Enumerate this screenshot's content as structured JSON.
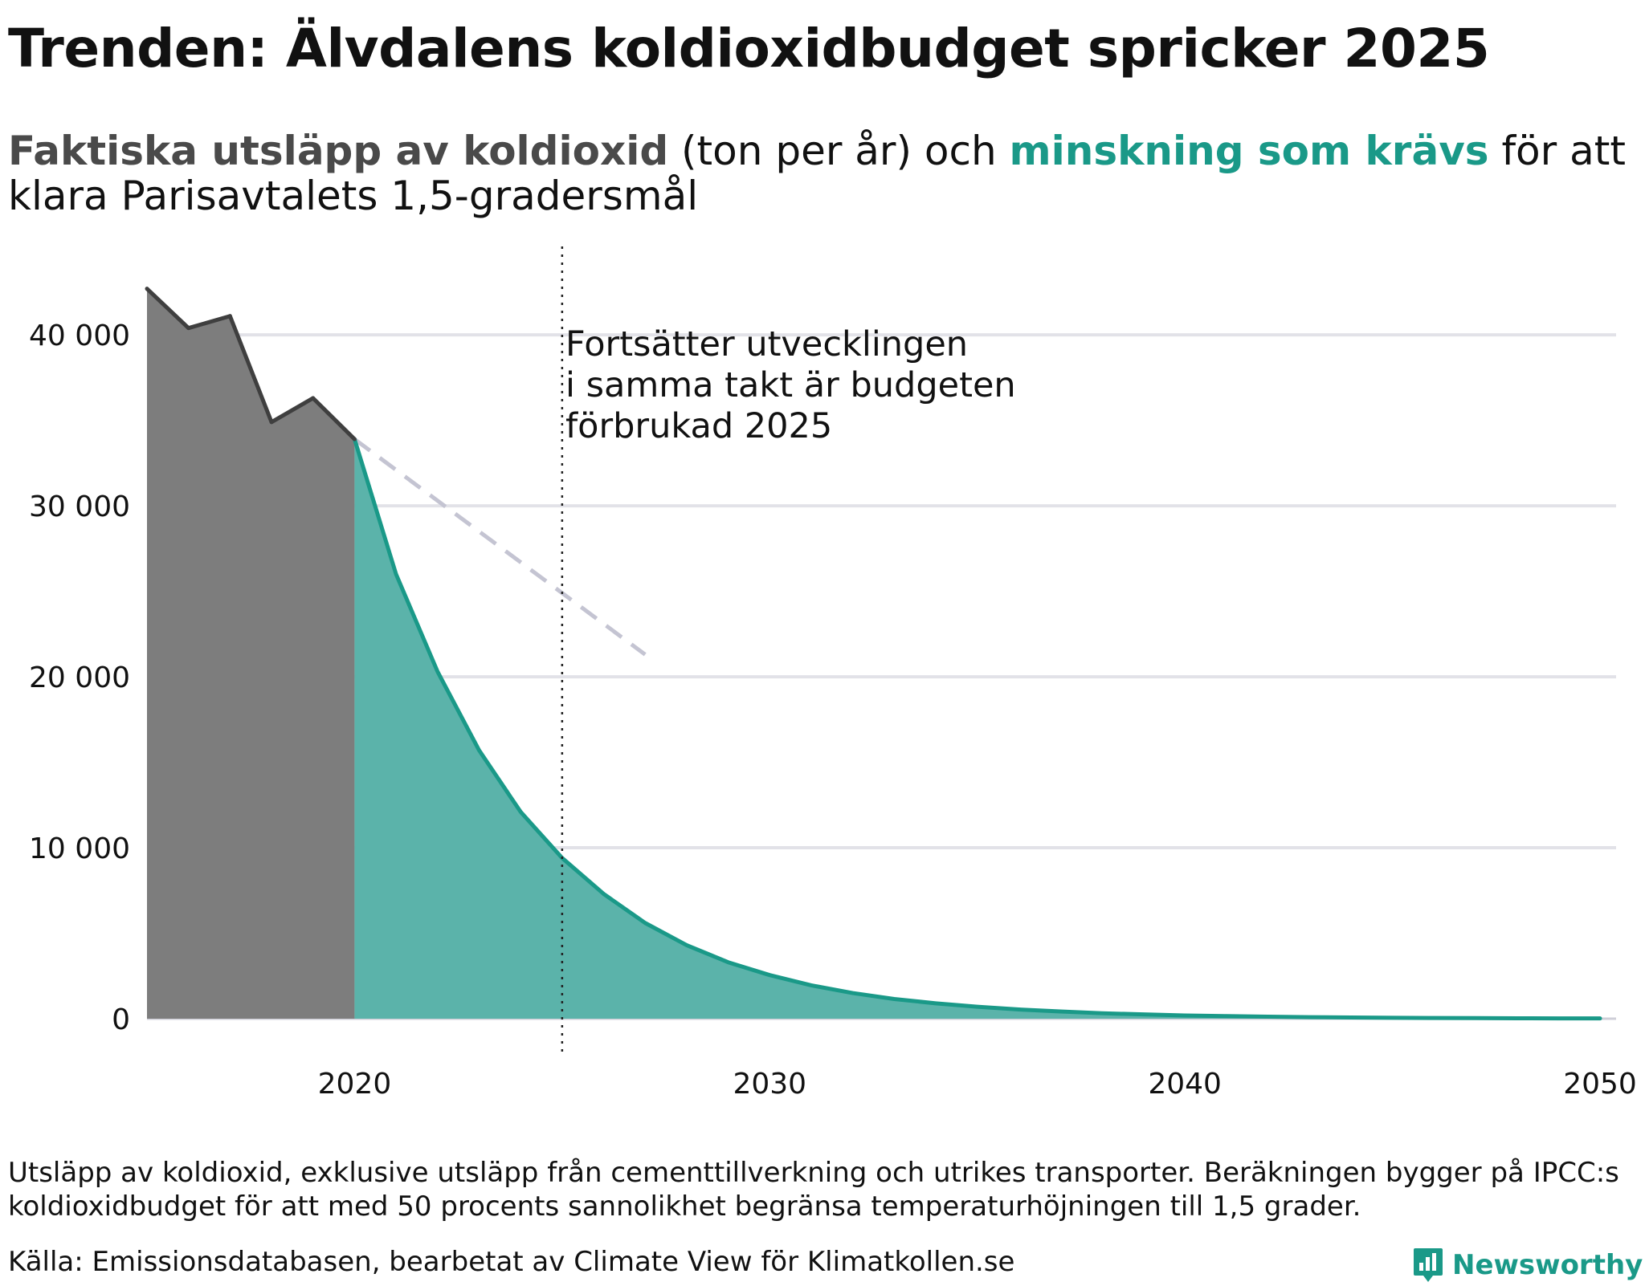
{
  "title": "Trenden: Älvdalens koldioxidbudget spricker 2025",
  "subtitle": {
    "part1": "Faktiska utsläpp av koldioxid",
    "part2": " (ton per år) och ",
    "part3": "minskning som krävs",
    "part4": " för att klara Parisavtalets 1,5-gradersmål"
  },
  "colors": {
    "actual_fill": "#7d7d7d",
    "actual_line": "#3f3f3f",
    "required_fill": "#5bb3aa",
    "required_line": "#1a9988",
    "trend_line": "#c4c4d2",
    "grid": "#e2e2e8"
  },
  "chart_data": {
    "type": "area",
    "xlabel": "",
    "ylabel": "",
    "xlim": [
      2015,
      2050
    ],
    "ylim": [
      0,
      44000
    ],
    "x_ticks": [
      2020,
      2030,
      2040,
      2050
    ],
    "y_ticks": [
      0,
      10000,
      20000,
      30000,
      40000
    ],
    "y_tick_labels": [
      "0",
      "10 000",
      "20 000",
      "30 000",
      "40 000"
    ],
    "grid": "horizontal",
    "series": [
      {
        "name": "Faktiska utsläpp av koldioxid",
        "style": "area",
        "x": [
          2015,
          2016,
          2017,
          2018,
          2019,
          2020
        ],
        "y": [
          42700,
          40400,
          41100,
          34900,
          36300,
          33900
        ]
      },
      {
        "name": "minskning som krävs",
        "style": "area",
        "x": [
          2020,
          2021,
          2022,
          2023,
          2024,
          2025,
          2026,
          2027,
          2028,
          2029,
          2030,
          2031,
          2032,
          2033,
          2034,
          2035,
          2036,
          2037,
          2038,
          2039,
          2040,
          2041,
          2042,
          2043,
          2044,
          2045,
          2046,
          2047,
          2048,
          2049,
          2050
        ],
        "y": [
          33900,
          26000,
          20300,
          15700,
          12100,
          9400,
          7300,
          5600,
          4300,
          3300,
          2550,
          1950,
          1500,
          1150,
          900,
          700,
          540,
          420,
          320,
          250,
          190,
          150,
          115,
          90,
          70,
          55,
          42,
          33,
          26,
          20,
          15
        ]
      },
      {
        "style": "dashed-trend",
        "x": [
          2020,
          2027
        ],
        "y": [
          33900,
          21300
        ]
      }
    ],
    "markers": [
      {
        "x": 2025,
        "style": "dotted-vertical"
      }
    ],
    "annotation": {
      "lines": [
        "Fortsätter utvecklingen",
        "i samma takt är budgeten",
        "förbrukad 2025"
      ]
    }
  },
  "footnote": "Utsläpp av koldioxid, exklusive utsläpp från cementtillverkning och utrikes transporter. Beräkningen bygger på IPCC:s koldioxidbudget för att med 50 procents sannolikhet begränsa temperaturhöjningen till 1,5 grader.",
  "source": "Källa: Emissionsdatabasen, bearbetat av Climate View för Klimatkollen.se",
  "brand": {
    "name": "Newsworthy",
    "icon": "newsworthy-logo-icon"
  }
}
